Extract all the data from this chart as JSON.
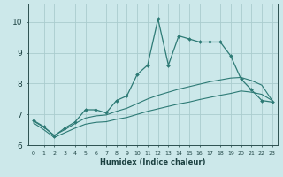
{
  "xlabel": "Humidex (Indice chaleur)",
  "background_color": "#cce8ea",
  "grid_color": "#aaccce",
  "line_color": "#2d7a75",
  "xlim": [
    -0.5,
    23.5
  ],
  "ylim": [
    6.0,
    10.6
  ],
  "yticks": [
    6,
    7,
    8,
    9,
    10
  ],
  "xticks": [
    0,
    1,
    2,
    3,
    4,
    5,
    6,
    7,
    8,
    9,
    10,
    11,
    12,
    13,
    14,
    15,
    16,
    17,
    18,
    19,
    20,
    21,
    22,
    23
  ],
  "main_line": {
    "x": [
      0,
      1,
      2,
      3,
      4,
      5,
      6,
      7,
      8,
      9,
      10,
      11,
      12,
      13,
      14,
      15,
      16,
      17,
      18,
      19,
      20,
      21,
      22,
      23
    ],
    "y": [
      6.8,
      6.6,
      6.3,
      6.55,
      6.75,
      7.15,
      7.15,
      7.05,
      7.45,
      7.6,
      8.3,
      8.6,
      10.1,
      8.6,
      9.55,
      9.45,
      9.35,
      9.35,
      9.35,
      8.9,
      8.15,
      7.8,
      7.45,
      7.4
    ]
  },
  "upper_envelope": {
    "x": [
      0,
      1,
      2,
      3,
      4,
      5,
      6,
      7,
      8,
      9,
      10,
      11,
      12,
      13,
      14,
      15,
      16,
      17,
      18,
      19,
      20,
      21,
      22,
      23
    ],
    "y": [
      6.78,
      6.58,
      6.32,
      6.5,
      6.7,
      6.88,
      6.95,
      6.98,
      7.1,
      7.2,
      7.35,
      7.5,
      7.62,
      7.72,
      7.82,
      7.9,
      7.98,
      8.06,
      8.12,
      8.18,
      8.2,
      8.1,
      7.95,
      7.45
    ]
  },
  "lower_envelope": {
    "x": [
      0,
      1,
      2,
      3,
      4,
      5,
      6,
      7,
      8,
      9,
      10,
      11,
      12,
      13,
      14,
      15,
      16,
      17,
      18,
      19,
      20,
      21,
      22,
      23
    ],
    "y": [
      6.72,
      6.5,
      6.25,
      6.4,
      6.55,
      6.68,
      6.74,
      6.76,
      6.84,
      6.9,
      7.0,
      7.1,
      7.18,
      7.26,
      7.34,
      7.4,
      7.48,
      7.55,
      7.62,
      7.68,
      7.76,
      7.72,
      7.65,
      7.45
    ]
  }
}
